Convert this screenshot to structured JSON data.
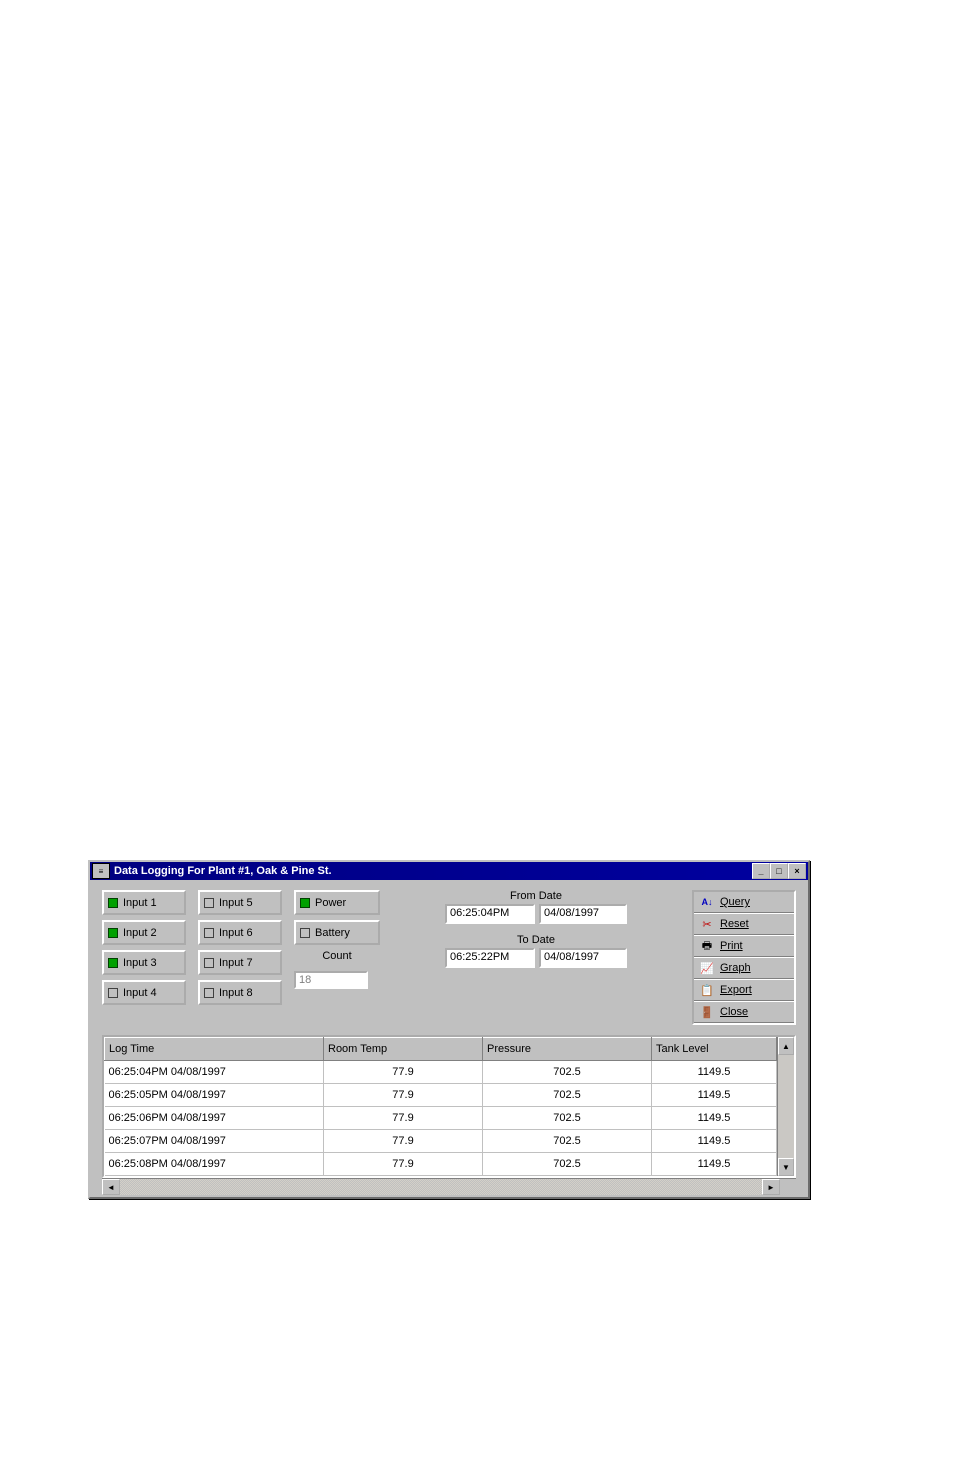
{
  "window": {
    "title": "Data Logging For Plant #1, Oak & Pine St."
  },
  "inputs": {
    "col1": [
      {
        "label": "Input 1",
        "on": true
      },
      {
        "label": "Input 2",
        "on": true
      },
      {
        "label": "Input 3",
        "on": true
      },
      {
        "label": "Input 4",
        "on": false
      }
    ],
    "col2": [
      {
        "label": "Input 5",
        "on": false
      },
      {
        "label": "Input 6",
        "on": false
      },
      {
        "label": "Input 7",
        "on": false
      },
      {
        "label": "Input 8",
        "on": false
      }
    ],
    "status": [
      {
        "label": "Power",
        "on": true
      },
      {
        "label": "Battery",
        "on": false
      }
    ],
    "count_label": "Count",
    "count_value": "18"
  },
  "dates": {
    "from_label": "From Date",
    "from_time": "06:25:04PM",
    "from_date": "04/08/1997",
    "to_label": "To Date",
    "to_time": "06:25:22PM",
    "to_date": "04/08/1997"
  },
  "actions": {
    "query": "Query",
    "reset": "Reset",
    "print": "Print",
    "graph": "Graph",
    "export": "Export",
    "close": "Close"
  },
  "table": {
    "columns": [
      "Log Time",
      "Room Temp",
      "Pressure",
      "Tank Level"
    ],
    "col_widths": [
      "210px",
      "150px",
      "160px",
      "auto"
    ],
    "rows": [
      [
        "06:25:04PM 04/08/1997",
        "77.9",
        "702.5",
        "1149.5"
      ],
      [
        "06:25:05PM 04/08/1997",
        "77.9",
        "702.5",
        "1149.5"
      ],
      [
        "06:25:06PM 04/08/1997",
        "77.9",
        "702.5",
        "1149.5"
      ],
      [
        "06:25:07PM 04/08/1997",
        "77.9",
        "702.5",
        "1149.5"
      ],
      [
        "06:25:08PM 04/08/1997",
        "77.9",
        "702.5",
        "1149.5"
      ]
    ]
  },
  "colors": {
    "titlebar_bg": "#000080",
    "window_bg": "#c0c0c0",
    "led_on": "#00a000"
  }
}
